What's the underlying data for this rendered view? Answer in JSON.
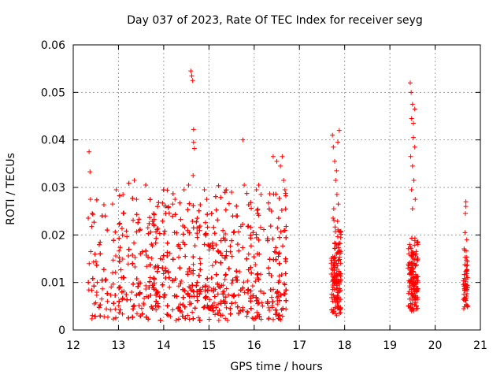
{
  "chart_data": {
    "type": "scatter",
    "title": "Day 037 of 2023, Rate Of TEC Index for receiver seyg",
    "xlabel": "GPS time / hours",
    "ylabel": "ROTI / TECUs",
    "xlim": [
      12,
      21
    ],
    "ylim": [
      0,
      0.06
    ],
    "x_ticks": [
      "12",
      "13",
      "14",
      "15",
      "16",
      "17",
      "18",
      "19",
      "20",
      "21"
    ],
    "y_ticks": [
      "0",
      "0.01",
      "0.02",
      "0.03",
      "0.04",
      "0.05",
      "0.06"
    ],
    "grid": true,
    "marker": "+",
    "color": "#ff0000",
    "clusters": [
      {
        "x_range": [
          12.33,
          16.72
        ],
        "y_range": [
          0.002,
          0.018
        ],
        "count": 2400
      },
      {
        "x_range": [
          12.33,
          16.72
        ],
        "y_range": [
          0.015,
          0.032
        ],
        "count": 500
      },
      {
        "x_range": [
          17.7,
          17.92
        ],
        "y_range": [
          0.003,
          0.025
        ],
        "count": 160
      },
      {
        "x_range": [
          19.4,
          19.62
        ],
        "y_range": [
          0.004,
          0.022
        ],
        "count": 160
      },
      {
        "x_range": [
          20.62,
          20.72
        ],
        "y_range": [
          0.004,
          0.018
        ],
        "count": 60
      }
    ],
    "series": [
      {
        "values": [
          [
            12.35,
            0.0375
          ],
          [
            12.37,
            0.0333
          ],
          [
            12.38,
            0.0275
          ],
          [
            12.42,
            0.0245
          ],
          [
            12.87,
            0.0265
          ],
          [
            12.95,
            0.0295
          ],
          [
            13.1,
            0.0285
          ],
          [
            13.35,
            0.0315
          ],
          [
            13.4,
            0.0275
          ],
          [
            13.65,
            0.0215
          ],
          [
            14.2,
            0.0265
          ],
          [
            14.25,
            0.0275
          ],
          [
            14.45,
            0.0295
          ],
          [
            14.6,
            0.0545
          ],
          [
            14.62,
            0.0535
          ],
          [
            14.64,
            0.0525
          ],
          [
            14.66,
            0.0422
          ],
          [
            14.66,
            0.0395
          ],
          [
            14.68,
            0.0382
          ],
          [
            14.65,
            0.0325
          ],
          [
            14.55,
            0.0305
          ],
          [
            14.9,
            0.0295
          ],
          [
            14.95,
            0.0275
          ],
          [
            15.5,
            0.029
          ],
          [
            15.75,
            0.04
          ],
          [
            15.78,
            0.0305
          ],
          [
            16.05,
            0.0295
          ],
          [
            16.1,
            0.0305
          ],
          [
            16.15,
            0.0285
          ],
          [
            16.42,
            0.0365
          ],
          [
            16.5,
            0.0355
          ],
          [
            16.58,
            0.0345
          ],
          [
            16.62,
            0.0365
          ],
          [
            16.65,
            0.0315
          ],
          [
            16.68,
            0.0295
          ],
          [
            17.73,
            0.041
          ],
          [
            17.75,
            0.0385
          ],
          [
            17.78,
            0.0355
          ],
          [
            17.82,
            0.0335
          ],
          [
            17.88,
            0.042
          ],
          [
            17.85,
            0.0395
          ],
          [
            17.8,
            0.0315
          ],
          [
            17.83,
            0.0285
          ],
          [
            17.86,
            0.0265
          ],
          [
            17.76,
            0.0255
          ],
          [
            19.45,
            0.052
          ],
          [
            19.47,
            0.05
          ],
          [
            19.5,
            0.0475
          ],
          [
            19.55,
            0.0465
          ],
          [
            19.52,
            0.0435
          ],
          [
            19.48,
            0.0445
          ],
          [
            19.52,
            0.0405
          ],
          [
            19.55,
            0.0385
          ],
          [
            19.46,
            0.0365
          ],
          [
            19.5,
            0.0345
          ],
          [
            19.53,
            0.0315
          ],
          [
            19.48,
            0.0295
          ],
          [
            19.56,
            0.0275
          ],
          [
            19.5,
            0.0255
          ],
          [
            20.68,
            0.027
          ],
          [
            20.68,
            0.026
          ],
          [
            20.67,
            0.0245
          ],
          [
            20.66,
            0.0205
          ],
          [
            20.7,
            0.019
          ]
        ]
      }
    ]
  }
}
